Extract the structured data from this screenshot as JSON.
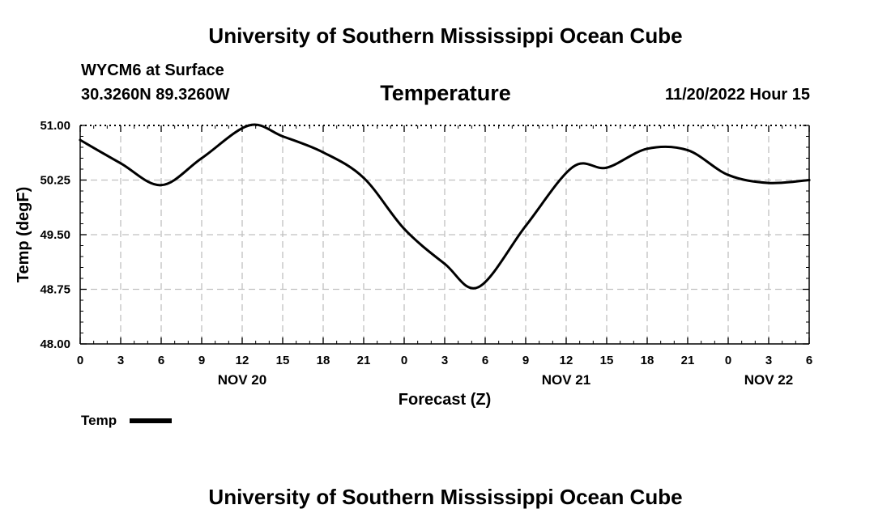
{
  "header": {
    "title": "University of Southern Mississippi Ocean Cube",
    "station": "WYCM6 at Surface",
    "coords": "30.3260N  89.3260W",
    "parameter": "Temperature",
    "valid_time": "11/20/2022 Hour 15"
  },
  "footer": {
    "title": "University of Southern Mississippi Ocean Cube"
  },
  "legend": {
    "label": "Temp"
  },
  "chart_data": {
    "type": "line",
    "title": "Temperature",
    "xlabel": "Forecast (Z)",
    "ylabel": "Temp (degF)",
    "ylim": [
      48.0,
      51.0
    ],
    "yticks": [
      "48.00",
      "48.75",
      "49.50",
      "50.25",
      "51.00"
    ],
    "xlim": [
      0,
      54
    ],
    "xticks": [
      "0",
      "3",
      "6",
      "9",
      "12",
      "15",
      "18",
      "21",
      "0",
      "3",
      "6",
      "9",
      "12",
      "15",
      "18",
      "21",
      "0",
      "3",
      "6"
    ],
    "day_labels": [
      {
        "label": "NOV 20",
        "tick": 12
      },
      {
        "label": "NOV 21",
        "tick": 36
      },
      {
        "label": "NOV 22",
        "tick": 51
      }
    ],
    "grid": true,
    "legend_position": "bottom-left",
    "line_color": "#000000",
    "series": [
      {
        "name": "Temp",
        "x": [
          0,
          3,
          6,
          9,
          12.5,
          15,
          18,
          21,
          24,
          27,
          29.5,
          33,
          36.5,
          39,
          42,
          45,
          48,
          51,
          54
        ],
        "values": [
          50.8,
          50.48,
          50.18,
          50.55,
          51.0,
          50.85,
          50.63,
          50.28,
          49.58,
          49.1,
          48.78,
          49.62,
          50.43,
          50.42,
          50.68,
          50.66,
          50.32,
          50.21,
          50.25
        ]
      }
    ]
  }
}
